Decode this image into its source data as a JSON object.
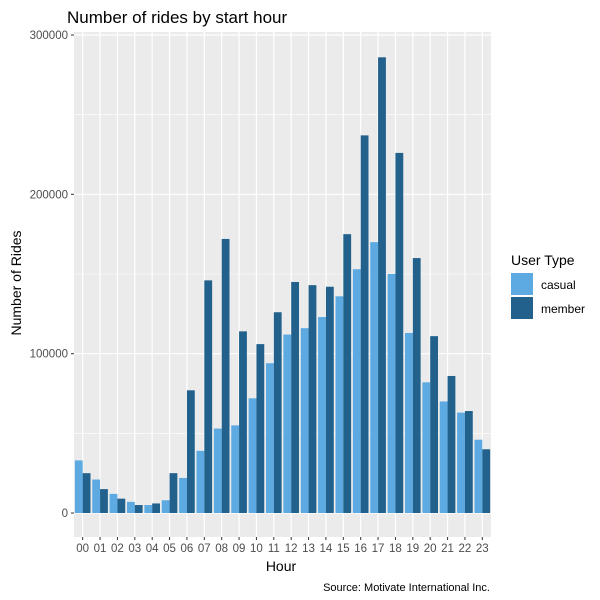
{
  "chart_data": {
    "type": "bar",
    "title": "Number of rides by start hour",
    "xlabel": "Hour",
    "ylabel": "Number of Rides",
    "caption": "Source: Motivate International Inc.",
    "categories": [
      "00",
      "01",
      "02",
      "03",
      "04",
      "05",
      "06",
      "07",
      "08",
      "09",
      "10",
      "11",
      "12",
      "13",
      "14",
      "15",
      "16",
      "17",
      "18",
      "19",
      "20",
      "21",
      "22",
      "23"
    ],
    "series": [
      {
        "name": "casual",
        "color": "#5DA9E1",
        "values": [
          33000,
          21000,
          12000,
          7000,
          5000,
          8000,
          22000,
          39000,
          53000,
          55000,
          72000,
          94000,
          112000,
          116000,
          123000,
          136000,
          153000,
          170000,
          150000,
          113000,
          82000,
          70000,
          63000,
          46000
        ]
      },
      {
        "name": "member",
        "color": "#21618C",
        "values": [
          25000,
          15000,
          9000,
          5000,
          6000,
          25000,
          77000,
          146000,
          172000,
          114000,
          106000,
          126000,
          145000,
          143000,
          142000,
          175000,
          237000,
          286000,
          226000,
          160000,
          111000,
          86000,
          64000,
          40000
        ]
      }
    ],
    "ylim": [
      0,
      300000
    ],
    "yticks": [
      0,
      100000,
      200000,
      300000
    ],
    "ytick_labels": [
      "0",
      "100000",
      "200000",
      "300000"
    ],
    "legend": {
      "title": "User Type",
      "position": "right"
    },
    "grid": true,
    "panel_color": "#EBEBEB"
  }
}
